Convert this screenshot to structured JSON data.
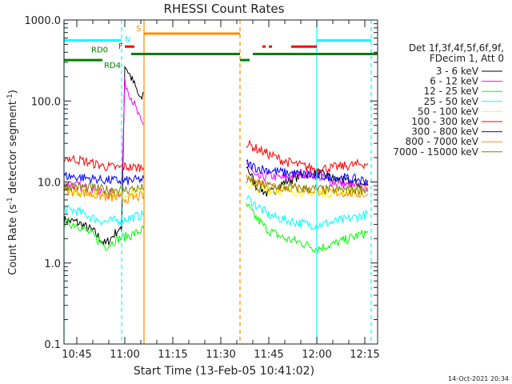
{
  "chart_data": {
    "type": "line",
    "title": "RHESSI Count Rates",
    "xlabel": "Start Time (13-Feb-05 10:41:02)",
    "ylabel": "Count Rate (s",
    "ylabel_sup": "-1",
    "ylabel_rest": " detector segment",
    "ylabel_sup2": "-1",
    "ylabel_end": ")",
    "yscale": "log",
    "ylim": [
      0.1,
      1000
    ],
    "xlim": [
      "10:41",
      "12:19"
    ],
    "y_ticks": [
      {
        "value": 0.1,
        "label": "0.1"
      },
      {
        "value": 1,
        "label": "1.0"
      },
      {
        "value": 10,
        "label": "10.0"
      },
      {
        "value": 100,
        "label": "100.0"
      },
      {
        "value": 1000,
        "label": "1000.0"
      }
    ],
    "x_ticks": [
      "10:45",
      "11:00",
      "11:15",
      "11:30",
      "11:45",
      "12:00",
      "12:15"
    ],
    "legend_header": [
      "Det 1f,3f,4f,5f,6f,9f,",
      "FDecim 1, Att 0"
    ],
    "legend_position": "right",
    "series": [
      {
        "name": "3 - 6 keV",
        "color": "#000000",
        "segments": [
          [
            [
              "10:41",
              3.4
            ],
            [
              "10:45",
              3.2
            ],
            [
              "10:50",
              2.5
            ],
            [
              "10:54",
              1.7
            ],
            [
              "10:58",
              2.6
            ],
            [
              "10:59",
              2.4
            ],
            [
              "11:00",
              280
            ],
            [
              "11:03",
              160
            ],
            [
              "11:05",
              100
            ],
            [
              "11:06",
              130
            ]
          ],
          [
            [
              "11:38",
              16
            ],
            [
              "11:41",
              9
            ],
            [
              "11:45",
              7
            ],
            [
              "11:50",
              10
            ],
            [
              "11:55",
              12
            ],
            [
              "12:00",
              13
            ],
            [
              "12:05",
              11
            ],
            [
              "12:10",
              10
            ],
            [
              "12:16",
              9
            ]
          ]
        ]
      },
      {
        "name": "6 - 12 keV",
        "color": "#ff00ff",
        "segments": [
          [
            [
              "10:41",
              9.5
            ],
            [
              "10:45",
              9
            ],
            [
              "10:50",
              8
            ],
            [
              "10:54",
              7
            ],
            [
              "10:58",
              7.5
            ],
            [
              "10:59",
              7.2
            ],
            [
              "11:00",
              170
            ],
            [
              "11:03",
              90
            ],
            [
              "11:05",
              55
            ],
            [
              "11:06",
              50
            ]
          ],
          [
            [
              "11:38",
              18
            ],
            [
              "11:41",
              11
            ],
            [
              "11:45",
              12
            ],
            [
              "11:50",
              11
            ],
            [
              "11:55",
              13
            ],
            [
              "12:00",
              12
            ],
            [
              "12:05",
              10
            ],
            [
              "12:10",
              9
            ],
            [
              "12:16",
              8.5
            ]
          ]
        ]
      },
      {
        "name": "12 - 25 keV",
        "color": "#00ff00",
        "segments": [
          [
            [
              "10:41",
              3.1
            ],
            [
              "10:45",
              3.0
            ],
            [
              "10:50",
              2.2
            ],
            [
              "10:54",
              1.6
            ],
            [
              "10:58",
              2.0
            ],
            [
              "11:00",
              2.1
            ],
            [
              "11:03",
              2.3
            ],
            [
              "11:06",
              2.6
            ]
          ],
          [
            [
              "11:38",
              5.2
            ],
            [
              "11:41",
              3.6
            ],
            [
              "11:45",
              2.5
            ],
            [
              "11:50",
              2.0
            ],
            [
              "11:55",
              1.8
            ],
            [
              "12:00",
              1.5
            ],
            [
              "12:05",
              1.7
            ],
            [
              "12:10",
              2.0
            ],
            [
              "12:16",
              2.4
            ]
          ]
        ]
      },
      {
        "name": "25 - 50 keV",
        "color": "#00ffff",
        "segments": [
          [
            [
              "10:41",
              4.6
            ],
            [
              "10:45",
              4.4
            ],
            [
              "10:50",
              3.6
            ],
            [
              "10:54",
              3.2
            ],
            [
              "10:58",
              3.4
            ],
            [
              "11:00",
              3.5
            ],
            [
              "11:03",
              3.7
            ],
            [
              "11:06",
              4.0
            ]
          ],
          [
            [
              "11:38",
              6.5
            ],
            [
              "11:41",
              5.2
            ],
            [
              "11:45",
              3.9
            ],
            [
              "11:50",
              3.4
            ],
            [
              "11:55",
              3.1
            ],
            [
              "12:00",
              2.9
            ],
            [
              "12:05",
              3.2
            ],
            [
              "12:10",
              3.5
            ],
            [
              "12:16",
              4.0
            ]
          ]
        ]
      },
      {
        "name": "50 - 100 keV",
        "color": "#ffff00",
        "segments": [
          [
            [
              "10:41",
              8.0
            ],
            [
              "10:45",
              7.8
            ],
            [
              "10:50",
              7.4
            ],
            [
              "10:54",
              7.1
            ],
            [
              "10:58",
              7.2
            ],
            [
              "11:00",
              7.0
            ],
            [
              "11:03",
              7.2
            ],
            [
              "11:06",
              7.5
            ]
          ],
          [
            [
              "11:38",
              9.5
            ],
            [
              "11:41",
              8.4
            ],
            [
              "11:45",
              8.0
            ],
            [
              "11:50",
              7.8
            ],
            [
              "11:55",
              7.6
            ],
            [
              "12:00",
              7.4
            ],
            [
              "12:05",
              7.5
            ],
            [
              "12:10",
              7.6
            ],
            [
              "12:16",
              7.8
            ]
          ]
        ]
      },
      {
        "name": "100 - 300 keV",
        "color": "#ff0000",
        "segments": [
          [
            [
              "10:41",
              20
            ],
            [
              "10:45",
              19
            ],
            [
              "10:50",
              17
            ],
            [
              "10:54",
              15.5
            ],
            [
              "10:58",
              15
            ],
            [
              "11:00",
              15.5
            ],
            [
              "11:03",
              15
            ],
            [
              "11:06",
              15.5
            ]
          ],
          [
            [
              "11:38",
              30
            ],
            [
              "11:41",
              26
            ],
            [
              "11:45",
              22
            ],
            [
              "11:50",
              18
            ],
            [
              "11:55",
              16
            ],
            [
              "12:00",
              14.5
            ],
            [
              "12:05",
              15
            ],
            [
              "12:10",
              16
            ],
            [
              "12:16",
              17
            ]
          ]
        ]
      },
      {
        "name": "300 - 800 keV",
        "color": "#0000ff",
        "segments": [
          [
            [
              "10:41",
              12
            ],
            [
              "10:45",
              11.5
            ],
            [
              "10:50",
              11
            ],
            [
              "10:54",
              10.5
            ],
            [
              "10:58",
              10.4
            ],
            [
              "11:00",
              10.3
            ],
            [
              "11:03",
              10.5
            ],
            [
              "11:06",
              10.8
            ]
          ],
          [
            [
              "11:38",
              17
            ],
            [
              "11:41",
              15
            ],
            [
              "11:45",
              14
            ],
            [
              "11:50",
              13
            ],
            [
              "11:55",
              12.5
            ],
            [
              "12:00",
              12
            ],
            [
              "12:05",
              11.5
            ],
            [
              "12:10",
              11
            ],
            [
              "12:16",
              10.5
            ]
          ]
        ]
      },
      {
        "name": "800 - 7000 keV",
        "color": "#ff8c00",
        "segments": [
          [
            [
              "10:41",
              7.8
            ],
            [
              "10:45",
              7.6
            ],
            [
              "10:50",
              7.0
            ],
            [
              "10:54",
              6.5
            ],
            [
              "10:58",
              6.3
            ],
            [
              "11:00",
              6.2
            ],
            [
              "11:03",
              6.4
            ],
            [
              "11:06",
              6.8
            ]
          ],
          [
            [
              "11:38",
              11
            ],
            [
              "11:41",
              10
            ],
            [
              "11:45",
              9.2
            ],
            [
              "11:50",
              8.6
            ],
            [
              "11:55",
              8.1
            ],
            [
              "12:00",
              7.8
            ],
            [
              "12:05",
              7.5
            ],
            [
              "12:10",
              7.3
            ],
            [
              "12:16",
              7.0
            ]
          ]
        ]
      },
      {
        "name": "7000 - 15000 keV",
        "color": "#808000",
        "segments": [
          [
            [
              "10:41",
              9.0
            ],
            [
              "10:45",
              8.8
            ],
            [
              "10:50",
              8.4
            ],
            [
              "10:54",
              8.0
            ],
            [
              "10:58",
              8.1
            ],
            [
              "11:00",
              8.0
            ],
            [
              "11:03",
              8.2
            ],
            [
              "11:06",
              8.4
            ]
          ],
          [
            [
              "11:38",
              10.5
            ],
            [
              "11:41",
              9.6
            ],
            [
              "11:45",
              9.0
            ],
            [
              "11:50",
              8.6
            ],
            [
              "11:55",
              8.4
            ],
            [
              "12:00",
              8.2
            ],
            [
              "12:05",
              8.0
            ],
            [
              "12:10",
              8.0
            ],
            [
              "12:16",
              8.1
            ]
          ]
        ]
      }
    ],
    "vlines": [
      {
        "time": "10:41",
        "color": "#00ffff",
        "style": "solid"
      },
      {
        "time": "10:59",
        "color": "#00ffff",
        "style": "dashed"
      },
      {
        "time": "11:06",
        "color": "#ff8c00",
        "style": "solid"
      },
      {
        "time": "11:36",
        "color": "#ff8c00",
        "style": "dashed"
      },
      {
        "time": "12:00",
        "color": "#00ffff",
        "style": "solid"
      },
      {
        "time": "12:17",
        "color": "#00ffff",
        "style": "dashed"
      }
    ],
    "flag_bars": [
      {
        "label": "N",
        "color": "#00ffff",
        "value": 560,
        "spans": [
          [
            "10:41",
            "10:59"
          ],
          [
            "12:00",
            "12:17"
          ]
        ]
      },
      {
        "label": "S",
        "color": "#ff8c00",
        "value": 680,
        "spans": [
          [
            "11:06",
            "11:36"
          ]
        ]
      },
      {
        "label": "F",
        "color": "#ff0000",
        "value": 470,
        "spans": [
          [
            "11:00",
            "11:03"
          ],
          [
            "11:43",
            "11:44"
          ],
          [
            "11:45",
            "11:46"
          ],
          [
            "11:52",
            "12:00"
          ]
        ]
      },
      {
        "label": "RD0",
        "color": "#008000",
        "value": 380,
        "spans": [
          [
            "11:02",
            "11:36"
          ],
          [
            "11:40",
            "12:19"
          ]
        ]
      },
      {
        "label": "RD4",
        "color": "#008000",
        "value": 320,
        "spans": [
          [
            "10:41",
            "10:53"
          ],
          [
            "11:36",
            "11:39"
          ]
        ]
      }
    ],
    "timestamp": "14-Oct-2021 20:34"
  }
}
